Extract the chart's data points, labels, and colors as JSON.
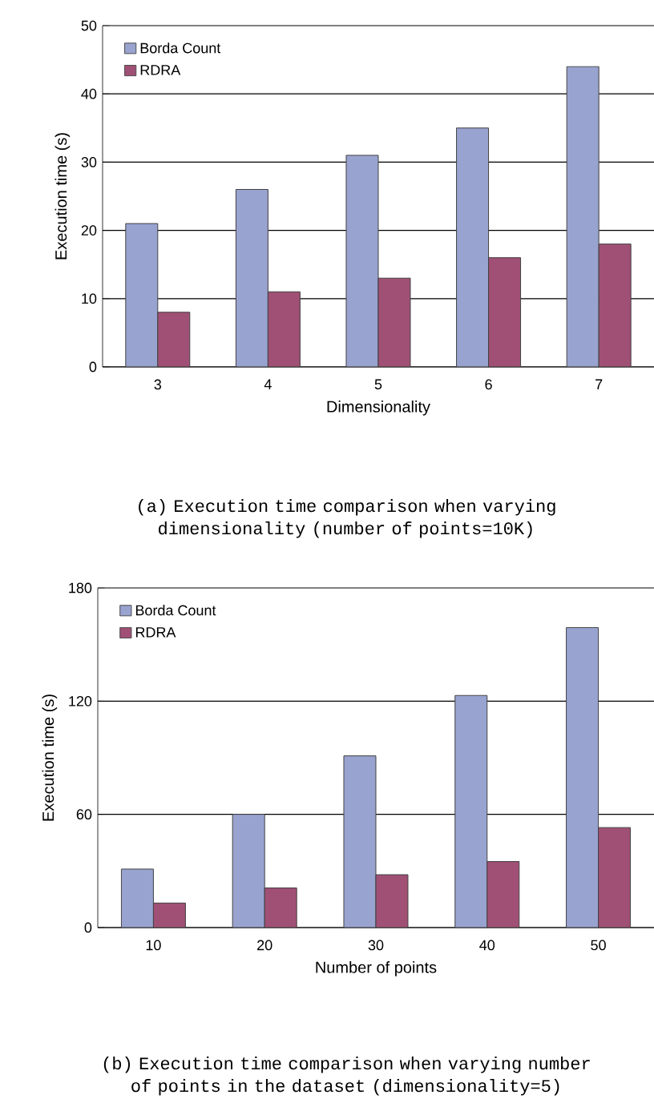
{
  "chart_data": [
    {
      "type": "bar",
      "categories": [
        "3",
        "4",
        "5",
        "6",
        "7"
      ],
      "xlabel": "Dimensionality",
      "ylabel": "Execution time (s)",
      "ylim": [
        0,
        50
      ],
      "yticks": [
        0,
        10,
        20,
        30,
        40,
        50
      ],
      "grid": "y",
      "legend": "top left",
      "series": [
        {
          "name": "Borda Count",
          "color": "#99a3d0",
          "values": [
            21,
            26,
            31,
            35,
            44
          ]
        },
        {
          "name": "RDRA",
          "color": "#a05075",
          "values": [
            8,
            11,
            13,
            16,
            18
          ]
        }
      ],
      "annotations": [
        "(a) Execution time comparison when varying dimensionality (number of points=10K)"
      ]
    },
    {
      "type": "bar",
      "categories": [
        "10",
        "20",
        "30",
        "40",
        "50"
      ],
      "xlabel": "Number of points",
      "ylabel": "Execution time (s)",
      "ylim": [
        0,
        180
      ],
      "yticks": [
        0,
        60,
        120,
        180
      ],
      "grid": "y",
      "legend": "top left",
      "series": [
        {
          "name": "Borda Count",
          "color": "#99a3d0",
          "values": [
            31,
            60,
            91,
            123,
            159
          ]
        },
        {
          "name": "RDRA",
          "color": "#a05075",
          "values": [
            13,
            21,
            28,
            35,
            53
          ]
        }
      ],
      "annotations": [
        "(b) Execution time comparison when varying number of points in the dataset (dimensionality=5)"
      ]
    }
  ]
}
